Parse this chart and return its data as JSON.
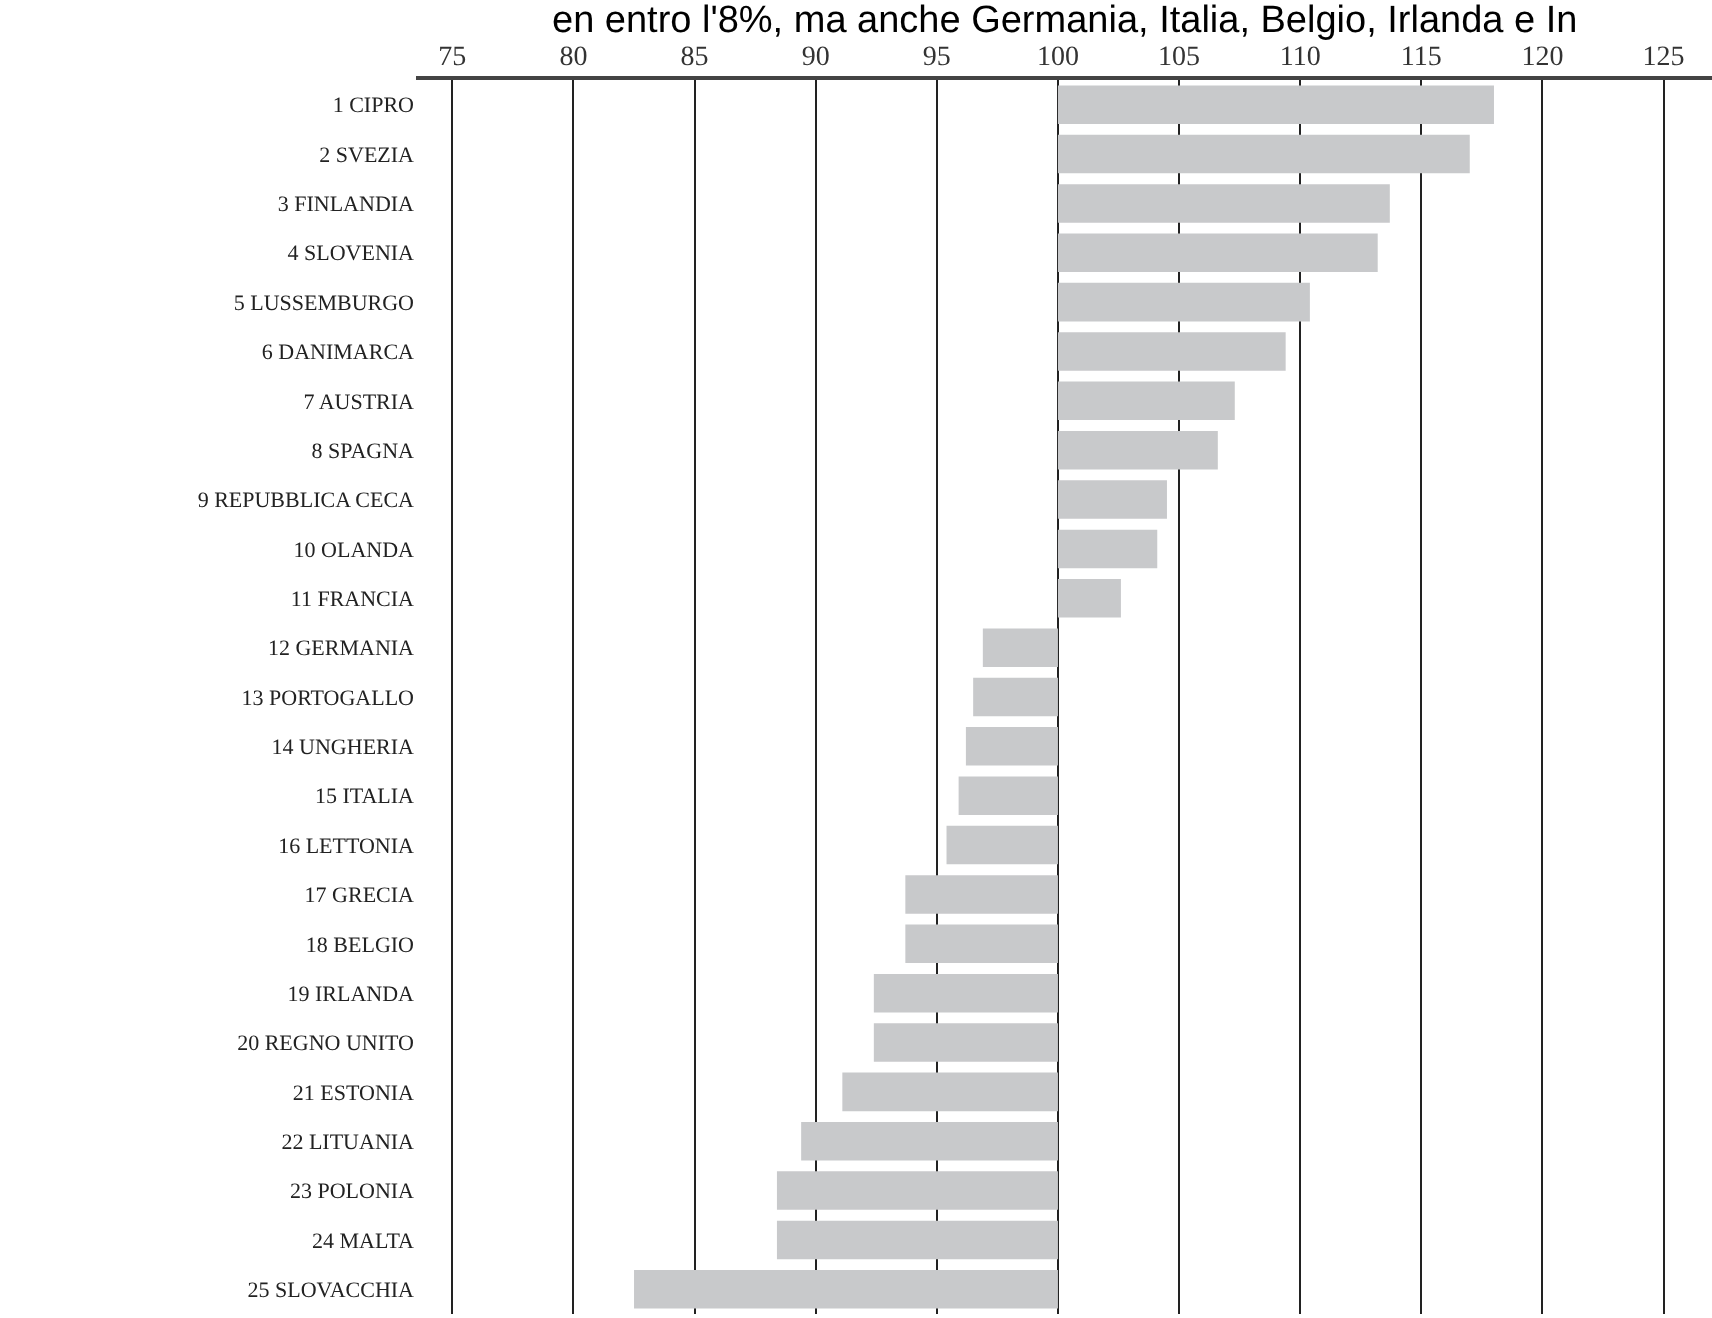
{
  "chart_data": {
    "type": "bar",
    "orientation": "horizontal",
    "annotations": [
      "en entro l'8%, ma anche Germania, Italia, Belgio, Irlanda e In"
    ],
    "categories": [
      "1 CIPRO",
      "2 SVEZIA",
      "3 FINLANDIA",
      "4 SLOVENIA",
      "5 LUSSEMBURGO",
      "6 DANIMARCA",
      "7 AUSTRIA",
      "8 SPAGNA",
      "9 REPUBBLICA CECA",
      "10 OLANDA",
      "11 FRANCIA",
      "12 GERMANIA",
      "13 PORTOGALLO",
      "14 UNGHERIA",
      "15 ITALIA",
      "16 LETTONIA",
      "17 GRECIA",
      "18 BELGIO",
      "19 IRLANDA",
      "20 REGNO UNITO",
      "21 ESTONIA",
      "22 LITUANIA",
      "23 POLONIA",
      "24 MALTA",
      "25 SLOVACCHIA"
    ],
    "base": [
      100,
      100,
      100,
      100,
      100,
      100,
      100,
      100,
      100,
      100,
      100,
      100,
      100,
      100,
      100,
      100,
      100,
      100,
      100,
      100,
      100,
      100,
      100,
      100,
      100
    ],
    "values": [
      18.0,
      17.0,
      13.7,
      13.2,
      10.4,
      9.4,
      7.3,
      6.6,
      4.5,
      4.1,
      2.6,
      -3.1,
      -3.5,
      -3.8,
      -4.1,
      -4.6,
      -6.3,
      -6.3,
      -7.6,
      -7.6,
      -8.9,
      -10.6,
      -11.6,
      -11.6,
      -17.5
    ],
    "color": "#c8c9cb",
    "xlim": [
      73.5,
      127
    ],
    "xticks": [
      75,
      80,
      85,
      90,
      95,
      100,
      105,
      110,
      115,
      120,
      125
    ],
    "grid": "x"
  }
}
